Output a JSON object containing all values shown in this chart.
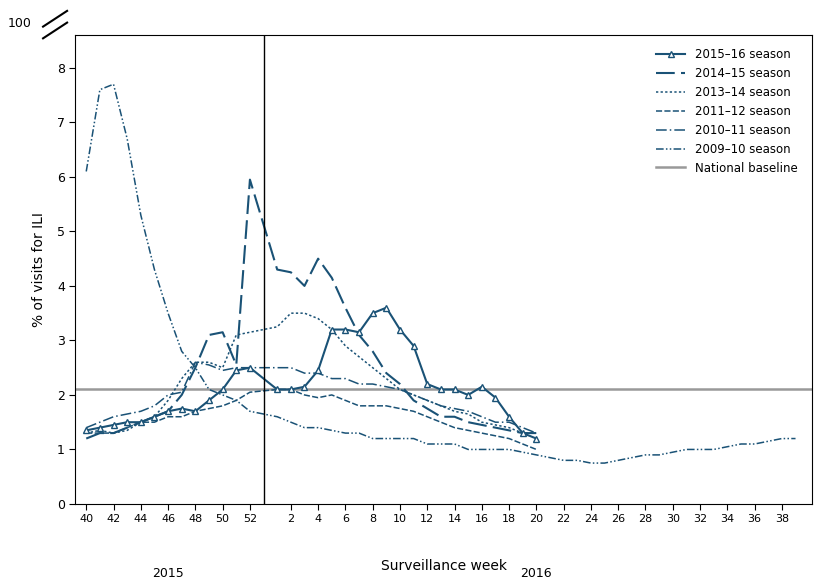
{
  "title": "",
  "xlabel": "Surveillance week",
  "ylabel": "% of visits for ILI",
  "national_baseline": 2.1,
  "baseline_color": "#999999",
  "line_color": "#1a5276",
  "season_2015_16": {
    "weeks": [
      40,
      41,
      42,
      43,
      44,
      45,
      46,
      47,
      48,
      49,
      50,
      51,
      52,
      1,
      2,
      3,
      4,
      5,
      6,
      7,
      8,
      9,
      10,
      11,
      12,
      13,
      14,
      15,
      16,
      17,
      18,
      19,
      20
    ],
    "y": [
      1.35,
      1.4,
      1.45,
      1.5,
      1.5,
      1.6,
      1.7,
      1.75,
      1.7,
      1.9,
      2.1,
      2.45,
      2.5,
      2.1,
      2.1,
      2.15,
      2.45,
      3.2,
      3.2,
      3.15,
      3.5,
      3.6,
      3.2,
      2.9,
      2.2,
      2.1,
      2.1,
      2.0,
      2.15,
      1.95,
      1.6,
      1.3,
      1.2
    ]
  },
  "season_2014_15": {
    "weeks": [
      40,
      41,
      42,
      43,
      44,
      45,
      46,
      47,
      48,
      49,
      50,
      51,
      52,
      1,
      2,
      3,
      4,
      5,
      6,
      7,
      8,
      9,
      10,
      11,
      12,
      13,
      14,
      15,
      16,
      17,
      18,
      19,
      20
    ],
    "y": [
      1.2,
      1.3,
      1.3,
      1.4,
      1.5,
      1.6,
      1.7,
      2.0,
      2.5,
      3.1,
      3.15,
      2.55,
      5.95,
      4.3,
      4.25,
      4.0,
      4.5,
      4.15,
      3.6,
      3.1,
      2.8,
      2.4,
      2.2,
      1.9,
      1.75,
      1.6,
      1.6,
      1.5,
      1.45,
      1.4,
      1.35,
      1.3,
      1.3
    ]
  },
  "season_2013_14": {
    "weeks": [
      40,
      41,
      42,
      43,
      44,
      45,
      46,
      47,
      48,
      49,
      50,
      51,
      52,
      1,
      2,
      3,
      4,
      5,
      6,
      7,
      8,
      9,
      10,
      11,
      12,
      13,
      14,
      15,
      16,
      17,
      18,
      19,
      20
    ],
    "y": [
      1.3,
      1.35,
      1.3,
      1.35,
      1.5,
      1.6,
      1.9,
      2.3,
      2.6,
      2.6,
      2.5,
      3.1,
      3.15,
      3.25,
      3.5,
      3.5,
      3.4,
      3.2,
      2.9,
      2.7,
      2.5,
      2.3,
      2.1,
      2.0,
      1.9,
      1.8,
      1.7,
      1.65,
      1.5,
      1.45,
      1.4,
      1.3,
      1.3
    ]
  },
  "season_2011_12": {
    "weeks": [
      40,
      41,
      42,
      43,
      44,
      45,
      46,
      47,
      48,
      49,
      50,
      51,
      52,
      1,
      2,
      3,
      4,
      5,
      6,
      7,
      8,
      9,
      10,
      11,
      12,
      13,
      14,
      15,
      16,
      17,
      18,
      19,
      20
    ],
    "y": [
      1.3,
      1.3,
      1.3,
      1.4,
      1.5,
      1.5,
      1.6,
      1.6,
      1.7,
      1.75,
      1.8,
      1.9,
      2.05,
      2.1,
      2.1,
      2.0,
      1.95,
      2.0,
      1.9,
      1.8,
      1.8,
      1.8,
      1.75,
      1.7,
      1.6,
      1.5,
      1.4,
      1.35,
      1.3,
      1.25,
      1.2,
      1.1,
      1.0
    ]
  },
  "season_2010_11": {
    "weeks": [
      40,
      41,
      42,
      43,
      44,
      45,
      46,
      47,
      48,
      49,
      50,
      51,
      52,
      1,
      2,
      3,
      4,
      5,
      6,
      7,
      8,
      9,
      10,
      11,
      12,
      13,
      14,
      15,
      16,
      17,
      18,
      19,
      20
    ],
    "y": [
      1.4,
      1.5,
      1.6,
      1.65,
      1.7,
      1.8,
      2.0,
      2.05,
      2.6,
      2.55,
      2.45,
      2.5,
      2.5,
      2.5,
      2.5,
      2.4,
      2.4,
      2.3,
      2.3,
      2.2,
      2.2,
      2.15,
      2.1,
      2.0,
      1.9,
      1.8,
      1.75,
      1.7,
      1.6,
      1.5,
      1.5,
      1.4,
      1.3
    ]
  },
  "season_2009_10": {
    "weeks": [
      40,
      41,
      42,
      43,
      44,
      45,
      46,
      47,
      48,
      49,
      50,
      51,
      52,
      1,
      2,
      3,
      4,
      5,
      6,
      7,
      8,
      9,
      10,
      11,
      12,
      13,
      14,
      15,
      16,
      17,
      18,
      19,
      20,
      21,
      22,
      23,
      24,
      25,
      26,
      27,
      28,
      29,
      30,
      31,
      32,
      33,
      34,
      35,
      36,
      37,
      38,
      39
    ],
    "y": [
      6.1,
      7.6,
      7.7,
      6.7,
      5.3,
      4.3,
      3.5,
      2.8,
      2.5,
      2.1,
      2.0,
      1.9,
      1.7,
      1.6,
      1.5,
      1.4,
      1.4,
      1.35,
      1.3,
      1.3,
      1.2,
      1.2,
      1.2,
      1.2,
      1.1,
      1.1,
      1.1,
      1.0,
      1.0,
      1.0,
      1.0,
      0.95,
      0.9,
      0.85,
      0.8,
      0.8,
      0.75,
      0.75,
      0.8,
      0.85,
      0.9,
      0.9,
      0.95,
      1.0,
      1.0,
      1.0,
      1.05,
      1.1,
      1.1,
      1.15,
      1.2,
      1.2
    ]
  },
  "xticks_2015": [
    40,
    42,
    44,
    46,
    48,
    50,
    52
  ],
  "xticks_2016": [
    2,
    4,
    6,
    8,
    10,
    12,
    14,
    16,
    18,
    20,
    22,
    24,
    26,
    28,
    30,
    32,
    34,
    36,
    38
  ],
  "yticks": [
    0,
    1,
    2,
    3,
    4,
    5,
    6,
    7,
    8
  ],
  "ylim": [
    0,
    8.6
  ],
  "xlim_left": -0.8,
  "xlim_right": 53.2
}
